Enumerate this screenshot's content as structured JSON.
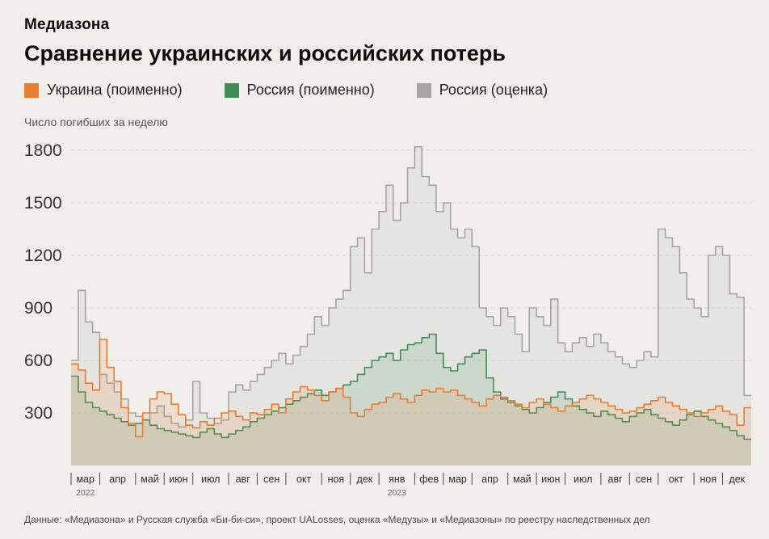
{
  "brand": "Медиазона",
  "title": "Сравнение украинских и российских потерь",
  "legend": [
    {
      "label": "Украина (поименно)",
      "color": "#e87d2e"
    },
    {
      "label": "Россия (поименно)",
      "color": "#3f8f55"
    },
    {
      "label": "Россия (оценка)",
      "color": "#a6a5a1"
    }
  ],
  "axis_caption": "Число погибших за неделю",
  "footer": "Данные: «Медиазона» и Русская служба «Би-би-си», проект UALosses, оценка «Медузы» и «Медиазоны» по реестру наследственных дел",
  "chart_data": {
    "type": "area",
    "step": true,
    "title": "Сравнение украинских и российских потерь",
    "xlabel": "",
    "ylabel": "Число погибших за неделю",
    "ylim": [
      0,
      1900
    ],
    "yticks": [
      300,
      600,
      900,
      1200,
      1500,
      1800
    ],
    "grid": "horizontal-dashed",
    "legend_position": "top",
    "x_unit": "week",
    "months": [
      "мар",
      "апр",
      "май",
      "июн",
      "июл",
      "авг",
      "сен",
      "окт",
      "ноя",
      "дек",
      "янв",
      "фев",
      "мар",
      "апр",
      "май",
      "июн",
      "июл",
      "авг",
      "сен",
      "окт",
      "ноя",
      "дек"
    ],
    "month_week_counts": [
      4,
      5,
      4,
      4,
      5,
      4,
      4,
      5,
      4,
      4,
      5,
      4,
      4,
      5,
      4,
      4,
      5,
      4,
      4,
      5,
      4,
      4
    ],
    "year_labels": [
      {
        "index": 0,
        "label": "2022"
      },
      {
        "index": 10,
        "label": "2023"
      }
    ],
    "series": [
      {
        "name": "Украина (поименно)",
        "color": "#e87d2e",
        "fill": "rgba(234,125,45,0.14)",
        "values": [
          580,
          545,
          470,
          430,
          720,
          560,
          480,
          330,
          240,
          165,
          300,
          380,
          420,
          410,
          350,
          290,
          230,
          215,
          250,
          230,
          270,
          300,
          310,
          280,
          260,
          300,
          290,
          320,
          350,
          300,
          380,
          420,
          450,
          430,
          400,
          370,
          420,
          440,
          390,
          300,
          280,
          320,
          350,
          360,
          390,
          410,
          380,
          360,
          400,
          430,
          420,
          440,
          420,
          430,
          400,
          380,
          360,
          340,
          380,
          400,
          390,
          370,
          350,
          330,
          360,
          380,
          350,
          330,
          310,
          340,
          360,
          380,
          400,
          380,
          360,
          340,
          320,
          300,
          310,
          330,
          350,
          370,
          390,
          360,
          340,
          320,
          300,
          280,
          300,
          320,
          340,
          310,
          290,
          230,
          330
        ]
      },
      {
        "name": "Россия (поименно)",
        "color": "#3f8f55",
        "fill": "rgba(63,143,85,0.14)",
        "values": [
          510,
          420,
          360,
          330,
          310,
          290,
          270,
          250,
          230,
          240,
          260,
          230,
          210,
          200,
          190,
          180,
          170,
          160,
          190,
          210,
          180,
          160,
          180,
          200,
          220,
          250,
          270,
          290,
          310,
          330,
          350,
          370,
          390,
          410,
          430,
          400,
          420,
          440,
          460,
          480,
          520,
          560,
          600,
          620,
          640,
          600,
          660,
          690,
          700,
          730,
          750,
          640,
          560,
          540,
          580,
          620,
          640,
          660,
          500,
          420,
          380,
          360,
          340,
          320,
          300,
          330,
          360,
          390,
          420,
          380,
          340,
          320,
          300,
          280,
          310,
          290,
          270,
          250,
          280,
          300,
          320,
          290,
          270,
          250,
          230,
          260,
          290,
          310,
          280,
          260,
          240,
          220,
          200,
          170,
          150
        ]
      },
      {
        "name": "Россия (оценка)",
        "color": "#a6a5a1",
        "fill": "rgba(150,150,146,0.12)",
        "values": [
          600,
          1000,
          820,
          760,
          520,
          470,
          420,
          380,
          300,
          280,
          260,
          300,
          340,
          280,
          240,
          220,
          260,
          480,
          300,
          270,
          240,
          260,
          420,
          460,
          430,
          480,
          520,
          560,
          600,
          640,
          580,
          630,
          680,
          750,
          850,
          800,
          900,
          950,
          1000,
          1250,
          1300,
          1100,
          1350,
          1450,
          1600,
          1400,
          1500,
          1700,
          1820,
          1650,
          1600,
          1450,
          1500,
          1350,
          1300,
          1350,
          1250,
          900,
          850,
          800,
          900,
          850,
          750,
          650,
          900,
          850,
          800,
          950,
          700,
          650,
          700,
          730,
          680,
          750,
          700,
          650,
          620,
          580,
          560,
          600,
          650,
          620,
          1350,
          1300,
          1250,
          1100,
          950,
          900,
          850,
          1200,
          1250,
          1200,
          980,
          960,
          400
        ]
      }
    ]
  }
}
